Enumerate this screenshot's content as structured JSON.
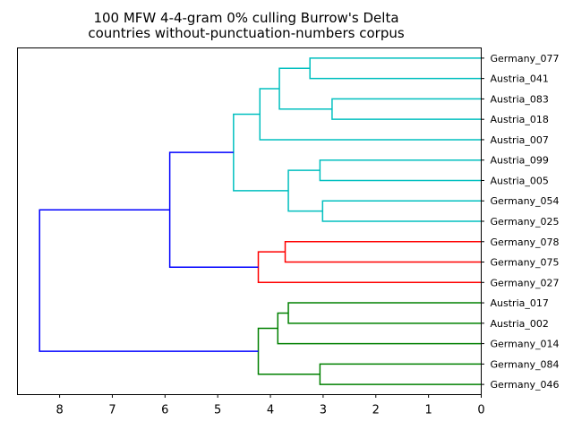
{
  "chart_data": {
    "type": "dendrogram",
    "orientation": "left",
    "title_line1": "100 MFW 4-4-gram 0% culling Burrow's Delta",
    "title_line2": "countries without-punctuation-numbers corpus",
    "xlabel": "",
    "ylabel": "",
    "xlim": [
      8.8,
      0
    ],
    "x_ticks": [
      8,
      7,
      6,
      5,
      4,
      3,
      2,
      1,
      0
    ],
    "grid": false,
    "leaves": [
      "Germany_077",
      "Austria_041",
      "Austria_083",
      "Austria_018",
      "Austria_007",
      "Austria_099",
      "Austria_005",
      "Germany_054",
      "Germany_025",
      "Germany_078",
      "Germany_075",
      "Germany_027",
      "Austria_017",
      "Austria_002",
      "Germany_014",
      "Germany_084",
      "Germany_046"
    ],
    "merges": [
      {
        "id": "c1",
        "children": [
          "Germany_077",
          "Austria_041"
        ],
        "height": 3.25,
        "color": "#00bfbf"
      },
      {
        "id": "c2",
        "children": [
          "Austria_083",
          "Austria_018"
        ],
        "height": 2.83,
        "color": "#00bfbf"
      },
      {
        "id": "c3",
        "children": [
          "c1",
          "c2"
        ],
        "height": 3.83,
        "color": "#00bfbf"
      },
      {
        "id": "c4",
        "children": [
          "c3",
          "Austria_007"
        ],
        "height": 4.2,
        "color": "#00bfbf"
      },
      {
        "id": "c5",
        "children": [
          "Austria_099",
          "Austria_005"
        ],
        "height": 3.06,
        "color": "#00bfbf"
      },
      {
        "id": "c6",
        "children": [
          "Germany_054",
          "Germany_025"
        ],
        "height": 3.01,
        "color": "#00bfbf"
      },
      {
        "id": "c7",
        "children": [
          "c5",
          "c6"
        ],
        "height": 3.66,
        "color": "#00bfbf"
      },
      {
        "id": "c8",
        "children": [
          "c4",
          "c7"
        ],
        "height": 4.7,
        "color": "#00bfbf"
      },
      {
        "id": "r1",
        "children": [
          "Germany_078",
          "Germany_075"
        ],
        "height": 3.72,
        "color": "#ff0000"
      },
      {
        "id": "r2",
        "children": [
          "r1",
          "Germany_027"
        ],
        "height": 4.23,
        "color": "#ff0000"
      },
      {
        "id": "b1",
        "children": [
          "c8",
          "r2"
        ],
        "height": 5.91,
        "color": "#0000ff"
      },
      {
        "id": "g1",
        "children": [
          "Austria_017",
          "Austria_002"
        ],
        "height": 3.66,
        "color": "#008000"
      },
      {
        "id": "g2",
        "children": [
          "g1",
          "Germany_014"
        ],
        "height": 3.86,
        "color": "#008000"
      },
      {
        "id": "g3",
        "children": [
          "Germany_084",
          "Germany_046"
        ],
        "height": 3.06,
        "color": "#008000"
      },
      {
        "id": "g4",
        "children": [
          "g2",
          "g3"
        ],
        "height": 4.23,
        "color": "#008000"
      },
      {
        "id": "b2",
        "children": [
          "b1",
          "g4"
        ],
        "height": 8.38,
        "color": "#0000ff"
      }
    ]
  }
}
